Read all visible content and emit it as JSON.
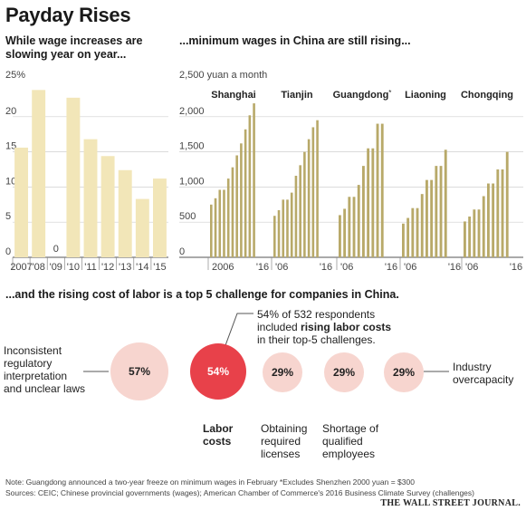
{
  "title": "Payday Rises",
  "subtitle_left": "While wage increases are slowing year on year...",
  "subtitle_right": "...minimum wages in China are still rising...",
  "subtitle_bottom": "...and the rising cost of labor is a top 5 challenge for companies in China.",
  "colors": {
    "bar_left": "#f2e6b8",
    "bar_right": "#b8a969",
    "circle_light": "#f7d5cf",
    "circle_accent": "#e8414a",
    "text": "#222222"
  },
  "chart_data": [
    {
      "type": "bar",
      "unit_label": "25%",
      "categories": [
        "2007",
        "'08",
        "'09",
        "'10",
        "'11",
        "'12",
        "'13",
        "'14",
        "'15"
      ],
      "values": [
        15.6,
        23.8,
        0,
        22.7,
        16.8,
        14.4,
        12.4,
        8.3,
        11.2
      ],
      "zero_label": "0",
      "ylim": [
        0,
        25
      ],
      "yticks": [
        "20",
        "15",
        "10",
        "5",
        "0"
      ],
      "ytick_values": [
        20,
        15,
        10,
        5,
        0
      ]
    },
    {
      "type": "bar",
      "unit_label": "2,500 yuan a month",
      "ylim": [
        0,
        2500
      ],
      "yticks": [
        "2,000",
        "1,500",
        "1,000",
        "500",
        "0"
      ],
      "ytick_values": [
        2000,
        1500,
        1000,
        500,
        0
      ],
      "series": [
        {
          "name": "Shanghai",
          "start_label": "2006",
          "end_label": "'16",
          "values": [
            750,
            840,
            960,
            960,
            1120,
            1280,
            1450,
            1620,
            1820,
            2020,
            2190
          ]
        },
        {
          "name": "Tianjin",
          "start_label": "'06",
          "end_label": "'16",
          "values": [
            590,
            670,
            820,
            820,
            920,
            1160,
            1310,
            1500,
            1680,
            1850,
            1950
          ]
        },
        {
          "name": "Guangdong",
          "start_label": "'06",
          "end_label": "'16",
          "values": [
            600,
            690,
            860,
            860,
            1030,
            1300,
            1550,
            1550,
            1900,
            1900
          ]
        },
        {
          "name": "Liaoning",
          "start_label": "'06",
          "end_label": "'16",
          "values": [
            480,
            560,
            700,
            700,
            900,
            1100,
            1100,
            1300,
            1300,
            1530
          ]
        },
        {
          "name": "Chongqing",
          "start_label": "'06",
          "end_label": "'16",
          "values": [
            510,
            580,
            680,
            680,
            870,
            1050,
            1050,
            1250,
            1250,
            1500
          ]
        }
      ],
      "guangdong_mark": "*"
    },
    {
      "type": "bubble",
      "items": [
        {
          "value": "57%",
          "label": "Inconsistent regulatory interpretation and unclear laws"
        },
        {
          "value": "54%",
          "label": "Labor costs"
        },
        {
          "value": "29%",
          "label": "Obtaining required licenses"
        },
        {
          "value": "29%",
          "label": "Shortage of qualified employees"
        },
        {
          "value": "29%",
          "label": "Industry overcapacity"
        }
      ]
    }
  ],
  "callout": {
    "line1": "54% of 532 respondents",
    "line2_pre": "included ",
    "line2_bold": "rising labor costs",
    "line3": "in their top-5 challenges."
  },
  "labels": {
    "inconsistent": [
      "Inconsistent",
      "regulatory",
      "interpretation",
      "and unclear laws"
    ],
    "labor": [
      "Labor",
      "costs"
    ],
    "licenses": [
      "Obtaining",
      "required",
      "licenses"
    ],
    "shortage": [
      "Shortage of",
      "qualified",
      "employees"
    ],
    "overcapacity": [
      "Industry",
      "overcapacity"
    ]
  },
  "notes": {
    "line1": "Note: Guangdong announced a two-year freeze on minimum wages in February     *Excludes Shenzhen    2000 yuan = $300",
    "line2": "Sources: CEIC; Chinese provincial governments (wages); American Chamber of Commerce's 2016 Business Climate Survey (challenges)"
  },
  "publisher": "THE WALL STREET JOURNAL."
}
